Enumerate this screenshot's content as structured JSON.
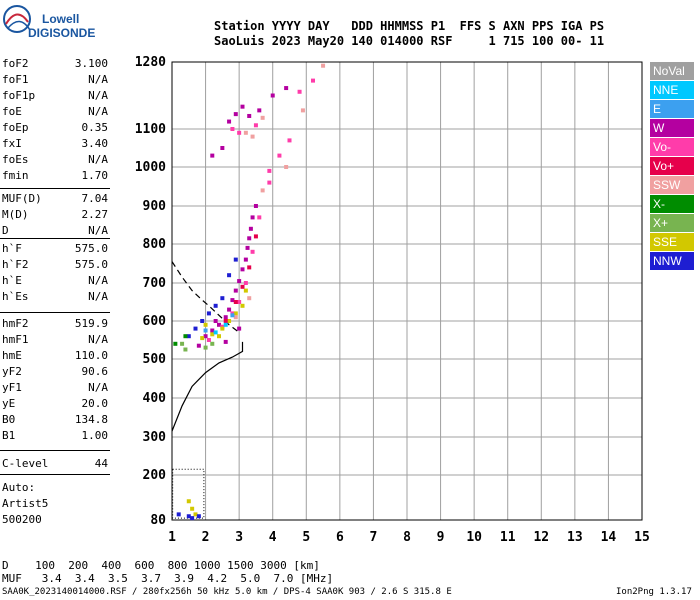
{
  "logo": {
    "line1": "Lowell",
    "line2": "DIGISONDE"
  },
  "header": {
    "row1": "Station YYYY DAY   DDD HHMMSS P1  FFS S AXN PPS IGA PS",
    "row2": "SaoLuis 2023 May20 140 014000 RSF     1 715 100 00- 11"
  },
  "params_group1": [
    {
      "key": "foF2",
      "value": "3.100"
    },
    {
      "key": "foF1",
      "value": "N/A"
    },
    {
      "key": "foF1p",
      "value": "N/A"
    },
    {
      "key": "foE",
      "value": "N/A"
    },
    {
      "key": "foEp",
      "value": "0.35"
    },
    {
      "key": "fxI",
      "value": "3.40"
    },
    {
      "key": "foEs",
      "value": "N/A"
    },
    {
      "key": "fmin",
      "value": "1.70"
    }
  ],
  "params_group2": [
    {
      "key": "MUF(D)",
      "value": "7.04"
    },
    {
      "key": "M(D)",
      "value": "2.27"
    },
    {
      "key": "D",
      "value": "N/A"
    }
  ],
  "params_group3": [
    {
      "key": "h`F",
      "value": "575.0"
    },
    {
      "key": "h`F2",
      "value": "575.0"
    },
    {
      "key": "h`E",
      "value": "N/A"
    },
    {
      "key": "h`Es",
      "value": "N/A"
    }
  ],
  "params_group4": [
    {
      "key": "hmF2",
      "value": "519.9"
    },
    {
      "key": "hmF1",
      "value": "N/A"
    },
    {
      "key": "hmE",
      "value": "110.0"
    },
    {
      "key": "yF2",
      "value": "90.6"
    },
    {
      "key": "yF1",
      "value": "N/A"
    },
    {
      "key": "yE",
      "value": "20.0"
    },
    {
      "key": "B0",
      "value": "134.8"
    },
    {
      "key": "B1",
      "value": "1.00"
    }
  ],
  "clevel": {
    "key": "C-level",
    "value": "44"
  },
  "autoscale": {
    "line1": "Auto:",
    "line2": "Artist5",
    "line3": "500200"
  },
  "legend": [
    {
      "label": "NoVal",
      "color": "#a0a0a0"
    },
    {
      "label": "NNE",
      "color": "#00c8ff"
    },
    {
      "label": "E",
      "color": "#3ca0f0"
    },
    {
      "label": "W",
      "color": "#b400a0"
    },
    {
      "label": "Vo-",
      "color": "#ff3caa"
    },
    {
      "label": "Vo+",
      "color": "#e6004b"
    },
    {
      "label": "SSW",
      "color": "#f0a0a0"
    },
    {
      "label": "X-",
      "color": "#008c00"
    },
    {
      "label": "X+",
      "color": "#78b450"
    },
    {
      "label": "SSE",
      "color": "#d2c800"
    },
    {
      "label": "NNW",
      "color": "#1e1ed2"
    }
  ],
  "footer": {
    "d_row": "D    100  200  400  600  800 1000 1500 3000 [km]",
    "muf_row": "MUF   3.4  3.4  3.5  3.7  3.9  4.2  5.0  7.0 [MHz]",
    "info_left": "SAA0K_2023140014000.RSF / 280fx256h 50 kHz 5.0 km / DPS-4 SAA0K 903 / 2.6 S 315.8 E",
    "info_right": "Ion2Png 1.3.17"
  },
  "chart_data": {
    "type": "scatter",
    "title": "",
    "xlabel": "",
    "ylabel": "",
    "xlim": [
      1,
      15
    ],
    "ylim": [
      80,
      1280
    ],
    "x_ticks": [
      1,
      2,
      3,
      4,
      5,
      6,
      7,
      8,
      9,
      10,
      11,
      12,
      13,
      14,
      15
    ],
    "y_ticks": [
      80,
      200,
      300,
      400,
      500,
      600,
      700,
      800,
      900,
      1000,
      1100,
      1280
    ],
    "grid": true,
    "legend_position": "right",
    "series": [
      {
        "name": "W",
        "color": "#b400a0",
        "points": [
          [
            2.0,
            560
          ],
          [
            2.2,
            575
          ],
          [
            2.4,
            590
          ],
          [
            2.6,
            610
          ],
          [
            2.7,
            630
          ],
          [
            2.8,
            655
          ],
          [
            2.9,
            680
          ],
          [
            3.0,
            705
          ],
          [
            3.1,
            735
          ],
          [
            3.2,
            760
          ],
          [
            3.25,
            790
          ],
          [
            3.3,
            815
          ],
          [
            3.35,
            840
          ],
          [
            3.4,
            870
          ],
          [
            3.5,
            900
          ],
          [
            2.7,
            1120
          ],
          [
            2.9,
            1140
          ],
          [
            3.1,
            1160
          ],
          [
            3.3,
            1135
          ],
          [
            3.6,
            1150
          ],
          [
            2.5,
            1050
          ],
          [
            2.2,
            1030
          ],
          [
            4.0,
            1190
          ],
          [
            4.4,
            1210
          ],
          [
            1.8,
            535
          ],
          [
            2.6,
            545
          ],
          [
            3.0,
            580
          ],
          [
            2.3,
            600
          ]
        ]
      },
      {
        "name": "Vo-",
        "color": "#ff3caa",
        "points": [
          [
            2.1,
            550
          ],
          [
            2.5,
            585
          ],
          [
            2.8,
            620
          ],
          [
            3.0,
            650
          ],
          [
            3.2,
            700
          ],
          [
            3.4,
            780
          ],
          [
            3.6,
            870
          ],
          [
            3.9,
            960
          ],
          [
            4.2,
            1030
          ],
          [
            4.5,
            1070
          ],
          [
            3.5,
            1110
          ],
          [
            3.0,
            1090
          ],
          [
            2.8,
            1100
          ],
          [
            4.8,
            1200
          ],
          [
            5.2,
            1230
          ],
          [
            3.9,
            990
          ]
        ]
      },
      {
        "name": "SSE",
        "color": "#d2c800",
        "points": [
          [
            1.9,
            555
          ],
          [
            2.2,
            565
          ],
          [
            2.5,
            580
          ],
          [
            2.7,
            600
          ],
          [
            2.9,
            620
          ],
          [
            3.1,
            640
          ],
          [
            3.2,
            680
          ],
          [
            2.4,
            560
          ],
          [
            2.0,
            590
          ],
          [
            1.5,
            130
          ],
          [
            1.6,
            110
          ],
          [
            1.7,
            95
          ]
        ]
      },
      {
        "name": "NNW",
        "color": "#1e1ed2",
        "points": [
          [
            1.5,
            560
          ],
          [
            1.7,
            580
          ],
          [
            1.9,
            600
          ],
          [
            2.1,
            620
          ],
          [
            2.3,
            640
          ],
          [
            2.5,
            660
          ],
          [
            2.7,
            720
          ],
          [
            2.9,
            760
          ],
          [
            1.2,
            95
          ],
          [
            1.5,
            90
          ],
          [
            1.6,
            85
          ],
          [
            1.8,
            90
          ]
        ]
      },
      {
        "name": "SSW",
        "color": "#f0a0a0",
        "points": [
          [
            3.2,
            1090
          ],
          [
            3.4,
            1080
          ],
          [
            3.7,
            1130
          ],
          [
            4.4,
            1000
          ],
          [
            4.9,
            1150
          ],
          [
            5.5,
            1270
          ],
          [
            3.7,
            940
          ],
          [
            2.9,
            610
          ],
          [
            3.3,
            660
          ]
        ]
      },
      {
        "name": "Vo+",
        "color": "#e6004b",
        "points": [
          [
            2.6,
            600
          ],
          [
            2.9,
            650
          ],
          [
            3.1,
            690
          ],
          [
            3.3,
            740
          ],
          [
            3.5,
            820
          ]
        ]
      },
      {
        "name": "X+",
        "color": "#78b450",
        "points": [
          [
            1.3,
            540
          ],
          [
            1.4,
            525
          ],
          [
            2.0,
            530
          ],
          [
            2.2,
            540
          ]
        ]
      },
      {
        "name": "X-",
        "color": "#008c00",
        "points": [
          [
            1.1,
            540
          ],
          [
            1.4,
            560
          ]
        ]
      },
      {
        "name": "NNE",
        "color": "#00c8ff",
        "points": [
          [
            2.3,
            570
          ],
          [
            2.6,
            590
          ]
        ]
      },
      {
        "name": "E",
        "color": "#3ca0f0",
        "points": [
          [
            2.0,
            575
          ],
          [
            2.8,
            615
          ]
        ]
      }
    ],
    "profile_lines": [
      {
        "name": "solid",
        "style": "solid",
        "points": [
          [
            1.0,
            315
          ],
          [
            1.3,
            380
          ],
          [
            1.6,
            430
          ],
          [
            2.0,
            465
          ],
          [
            2.4,
            490
          ],
          [
            2.8,
            505
          ],
          [
            3.1,
            520
          ],
          [
            3.1,
            545
          ]
        ]
      },
      {
        "name": "dashed",
        "style": "dashed",
        "points": [
          [
            1.0,
            755
          ],
          [
            1.3,
            715
          ],
          [
            1.6,
            680
          ],
          [
            1.9,
            655
          ],
          [
            2.1,
            640
          ],
          [
            2.4,
            615
          ],
          [
            2.7,
            590
          ],
          [
            3.0,
            570
          ]
        ]
      }
    ]
  }
}
